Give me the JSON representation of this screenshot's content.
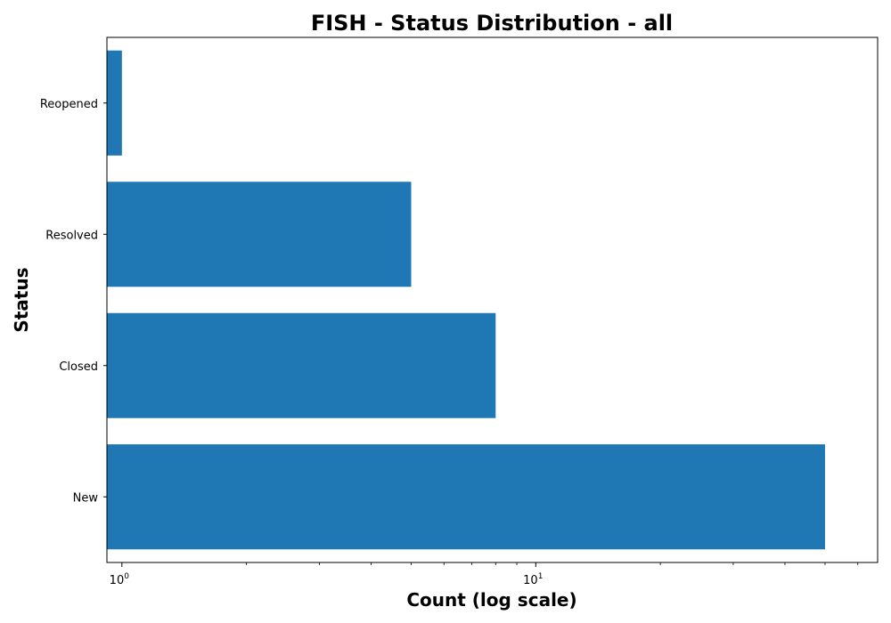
{
  "chart_data": {
    "type": "bar",
    "orientation": "horizontal",
    "title": "FISH - Status Distribution - all",
    "xlabel": "Count (log scale)",
    "ylabel": "Status",
    "xscale": "log",
    "xlim": [
      0.92,
      67
    ],
    "categories": [
      "New",
      "Closed",
      "Resolved",
      "Reopened"
    ],
    "values": [
      50,
      8,
      5,
      1
    ],
    "bar_color": "#1f77b4",
    "xticks": [
      {
        "value": 1,
        "base": "10",
        "exp": "0"
      },
      {
        "value": 10,
        "base": "10",
        "exp": "1"
      }
    ],
    "minor_ticks": [
      2,
      3,
      4,
      5,
      6,
      7,
      8,
      9,
      20,
      30,
      40,
      50,
      60
    ],
    "grid": false,
    "legend": "none"
  }
}
